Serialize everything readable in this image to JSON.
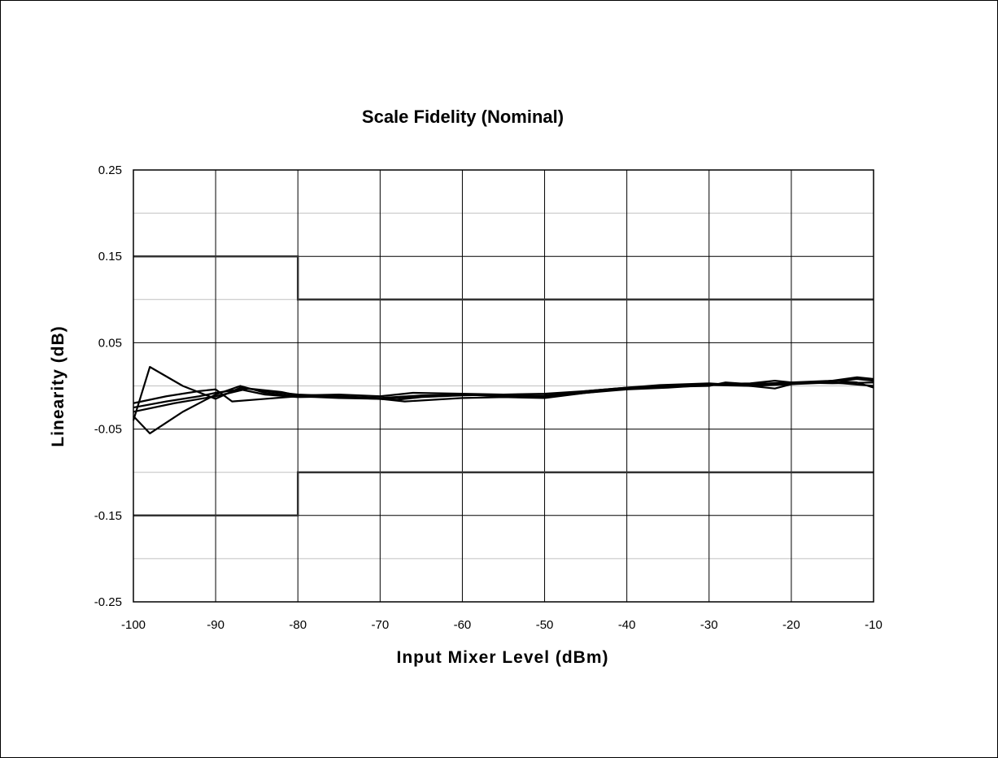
{
  "chart_data": {
    "type": "line",
    "title": "Scale Fidelity (Nominal)",
    "xlabel": "Input Mixer Level (dBm)",
    "ylabel": "Linearity (dB)",
    "xlim": [
      -100,
      -10
    ],
    "ylim": [
      -0.25,
      0.25
    ],
    "x_ticks": [
      -100,
      -90,
      -80,
      -70,
      -60,
      -50,
      -40,
      -30,
      -20,
      -10
    ],
    "x_tick_labels": [
      "-100",
      "-90",
      "-80",
      "-70",
      "-60",
      "-50",
      "-40",
      "-30",
      "-20",
      "-10"
    ],
    "y_major_ticks": [
      0.25,
      0.15,
      0.05,
      -0.05,
      -0.15,
      -0.25
    ],
    "y_tick_labels": [
      "0.25",
      "0.15",
      "0.05",
      "-0.05",
      "-0.15",
      "-0.25"
    ],
    "y_minor_gridlines": [
      0.2,
      0.1,
      0.0,
      -0.1,
      -0.2
    ],
    "grid": true,
    "legend": "none",
    "colors": {
      "line": "#000000",
      "limit": "#333333",
      "grid_major": "#000000",
      "grid_minor": "#c0c0c0"
    },
    "limit_lines": [
      {
        "kind": "upper",
        "x": [
          -100,
          -80,
          -80,
          -10
        ],
        "y": [
          0.15,
          0.15,
          0.1,
          0.1
        ]
      },
      {
        "kind": "lower",
        "x": [
          -100,
          -80,
          -80,
          -10
        ],
        "y": [
          -0.15,
          -0.15,
          -0.1,
          -0.1
        ]
      }
    ],
    "series": [
      {
        "x": [
          -100,
          -98,
          -94,
          -90,
          -87,
          -84,
          -80,
          -75,
          -70,
          -65,
          -60,
          -55,
          -50,
          -45,
          -40,
          -35,
          -30,
          -25,
          -22,
          -20,
          -15,
          -12,
          -10
        ],
        "y": [
          -0.04,
          0.022,
          0.0,
          -0.015,
          -0.002,
          -0.006,
          -0.01,
          -0.012,
          -0.015,
          -0.012,
          -0.01,
          -0.011,
          -0.012,
          -0.006,
          -0.002,
          0.0,
          0.002,
          0.003,
          0.006,
          0.004,
          0.006,
          0.01,
          0.008
        ]
      },
      {
        "x": [
          -100,
          -98,
          -94,
          -90,
          -87,
          -84,
          -80,
          -75,
          -70,
          -67,
          -60,
          -55,
          -50,
          -45,
          -40,
          -35,
          -30,
          -25,
          -20,
          -15,
          -10
        ],
        "y": [
          -0.035,
          -0.055,
          -0.03,
          -0.01,
          0.0,
          -0.008,
          -0.012,
          -0.014,
          -0.015,
          -0.018,
          -0.014,
          -0.013,
          -0.014,
          -0.008,
          -0.003,
          -0.001,
          0.001,
          0.0,
          0.002,
          0.004,
          0.0
        ]
      },
      {
        "x": [
          -100,
          -96,
          -92,
          -90,
          -87,
          -84,
          -80,
          -75,
          -70,
          -65,
          -60,
          -55,
          -50,
          -45,
          -40,
          -35,
          -30,
          -28,
          -25,
          -20,
          -15,
          -12,
          -10
        ],
        "y": [
          -0.025,
          -0.018,
          -0.012,
          -0.008,
          -0.004,
          -0.01,
          -0.013,
          -0.012,
          -0.014,
          -0.011,
          -0.01,
          -0.012,
          -0.011,
          -0.007,
          -0.003,
          -0.001,
          0.0,
          0.004,
          0.002,
          0.003,
          0.005,
          0.008,
          0.006
        ]
      },
      {
        "x": [
          -100,
          -96,
          -92,
          -90,
          -88,
          -84,
          -80,
          -75,
          -68,
          -65,
          -60,
          -55,
          -50,
          -45,
          -40,
          -35,
          -30,
          -25,
          -20,
          -15,
          -10
        ],
        "y": [
          -0.02,
          -0.012,
          -0.006,
          -0.004,
          -0.018,
          -0.015,
          -0.012,
          -0.013,
          -0.016,
          -0.013,
          -0.011,
          -0.01,
          -0.013,
          -0.008,
          -0.004,
          -0.002,
          0.001,
          0.002,
          0.004,
          0.003,
          0.004
        ]
      },
      {
        "x": [
          -100,
          -95,
          -90,
          -86,
          -82,
          -80,
          -75,
          -70,
          -66,
          -60,
          -55,
          -50,
          -45,
          -40,
          -36,
          -30,
          -25,
          -22,
          -20,
          -15,
          -12,
          -10
        ],
        "y": [
          -0.03,
          -0.02,
          -0.012,
          -0.003,
          -0.007,
          -0.011,
          -0.01,
          -0.012,
          -0.008,
          -0.009,
          -0.01,
          -0.009,
          -0.006,
          -0.002,
          0.001,
          0.003,
          0.0,
          -0.003,
          0.002,
          0.006,
          0.004,
          -0.002
        ]
      }
    ]
  }
}
